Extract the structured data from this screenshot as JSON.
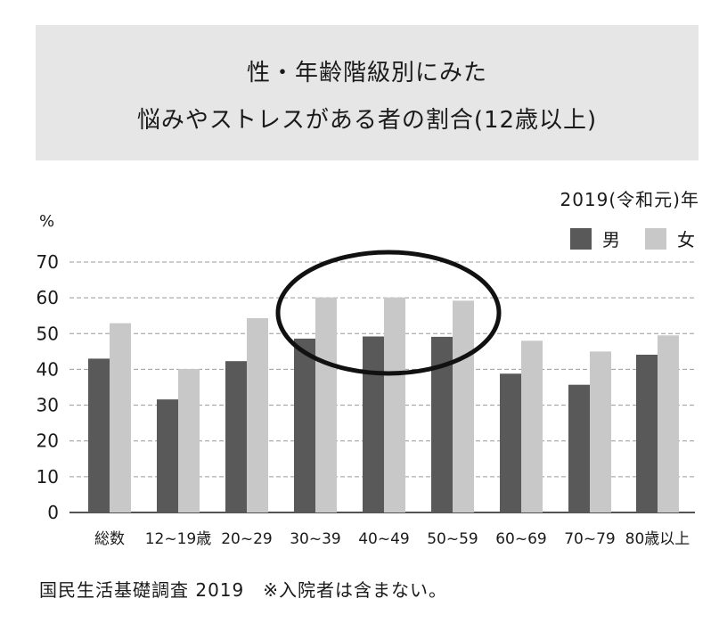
{
  "title": {
    "line1": "性・年齢階級別にみた",
    "line2": "悩みやストレスがある者の割合(12歳以上)"
  },
  "year_label": "2019(令和元)年",
  "unit": "%",
  "source": "国民生活基礎調査 2019　※入院者は含まない。",
  "colors": {
    "male": "#595959",
    "female": "#c8c8c8",
    "grid": "#999999",
    "highlight": "#111111"
  },
  "chart_data": {
    "type": "bar",
    "categories": [
      "総数",
      "12~19歳",
      "20~29",
      "30~39",
      "40~49",
      "50~59",
      "60~69",
      "70~79",
      "80歳以上"
    ],
    "series": [
      {
        "name": "男",
        "values": [
          43.0,
          31.6,
          42.3,
          48.6,
          49.2,
          49.1,
          38.8,
          35.7,
          44.1
        ]
      },
      {
        "name": "女",
        "values": [
          52.9,
          40.1,
          54.3,
          60.1,
          60.1,
          59.2,
          48.0,
          45.0,
          49.5
        ]
      }
    ],
    "ylim": [
      0,
      70
    ],
    "yticks": [
      0,
      10,
      20,
      30,
      40,
      50,
      60,
      70
    ],
    "grid": true,
    "legend": "top-right",
    "highlight": {
      "shape": "ellipse",
      "categories": [
        "30~39",
        "40~49",
        "50~59"
      ]
    }
  }
}
